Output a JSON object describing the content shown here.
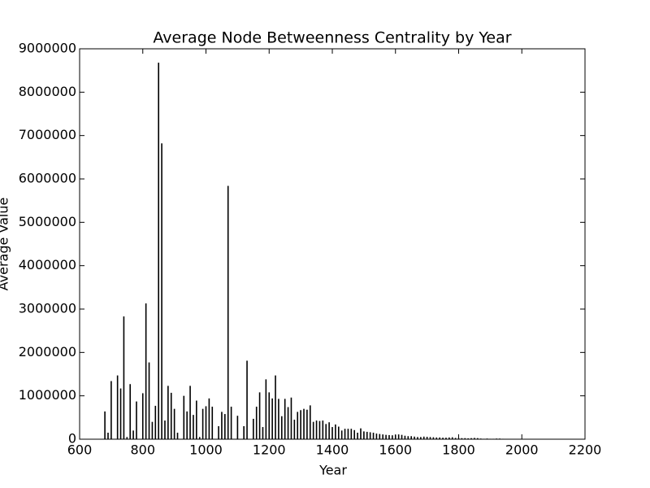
{
  "chart_data": {
    "type": "bar",
    "title": "Average Node Betweenness Centrality by Year",
    "xlabel": "Year",
    "ylabel": "Average Value",
    "color": "#000000",
    "x": [
      680,
      690,
      700,
      720,
      730,
      740,
      750,
      760,
      770,
      780,
      800,
      810,
      820,
      830,
      840,
      850,
      860,
      870,
      880,
      890,
      900,
      910,
      930,
      940,
      950,
      960,
      970,
      980,
      990,
      1000,
      1010,
      1020,
      1040,
      1050,
      1060,
      1070,
      1080,
      1100,
      1120,
      1130,
      1150,
      1160,
      1170,
      1180,
      1190,
      1200,
      1210,
      1220,
      1230,
      1240,
      1250,
      1260,
      1270,
      1280,
      1290,
      1300,
      1310,
      1320,
      1330,
      1340,
      1350,
      1360,
      1370,
      1380,
      1390,
      1400,
      1410,
      1420,
      1430,
      1440,
      1450,
      1460,
      1470,
      1480,
      1490,
      1500,
      1510,
      1520,
      1530,
      1540,
      1550,
      1560,
      1570,
      1580,
      1590,
      1600,
      1610,
      1620,
      1630,
      1640,
      1650,
      1660,
      1670,
      1680,
      1690,
      1700,
      1710,
      1720,
      1730,
      1740,
      1750,
      1760,
      1770,
      1780,
      1790,
      1800,
      1810,
      1820,
      1830,
      1840,
      1850,
      1860,
      1870,
      1880,
      1890,
      1900,
      1910,
      1920,
      1930,
      1940,
      1950,
      1960,
      1970,
      1980,
      1990,
      2000
    ],
    "values": [
      640000,
      150000,
      1340000,
      1470000,
      1170000,
      2830000,
      50000,
      1270000,
      200000,
      870000,
      1060000,
      3130000,
      1770000,
      400000,
      770000,
      8680000,
      6820000,
      430000,
      1230000,
      1070000,
      700000,
      150000,
      1000000,
      640000,
      1230000,
      560000,
      890000,
      50000,
      700000,
      760000,
      940000,
      750000,
      300000,
      630000,
      580000,
      5840000,
      750000,
      540000,
      300000,
      1810000,
      470000,
      750000,
      1080000,
      280000,
      1380000,
      1080000,
      940000,
      1470000,
      930000,
      530000,
      930000,
      740000,
      960000,
      450000,
      630000,
      670000,
      700000,
      680000,
      780000,
      400000,
      430000,
      420000,
      430000,
      350000,
      390000,
      280000,
      340000,
      290000,
      200000,
      240000,
      240000,
      240000,
      210000,
      150000,
      250000,
      180000,
      170000,
      160000,
      150000,
      130000,
      120000,
      110000,
      100000,
      95000,
      90000,
      100000,
      110000,
      100000,
      80000,
      70000,
      70000,
      60000,
      50000,
      50000,
      60000,
      55000,
      50000,
      45000,
      40000,
      40000,
      35000,
      35000,
      40000,
      45000,
      30000,
      25000,
      25000,
      25000,
      20000,
      25000,
      30000,
      25000,
      15000,
      10000,
      15000,
      10000,
      10000,
      15000,
      15000,
      10000,
      5000,
      5000,
      5000,
      5000,
      5000,
      5000
    ],
    "xlim": [
      600,
      2200
    ],
    "xticks": [
      600,
      800,
      1000,
      1200,
      1400,
      1600,
      1800,
      2000,
      2200
    ],
    "ylim": [
      0,
      9000000
    ],
    "yticks": [
      0,
      1000000,
      2000000,
      3000000,
      4000000,
      5000000,
      6000000,
      7000000,
      8000000,
      9000000
    ]
  }
}
